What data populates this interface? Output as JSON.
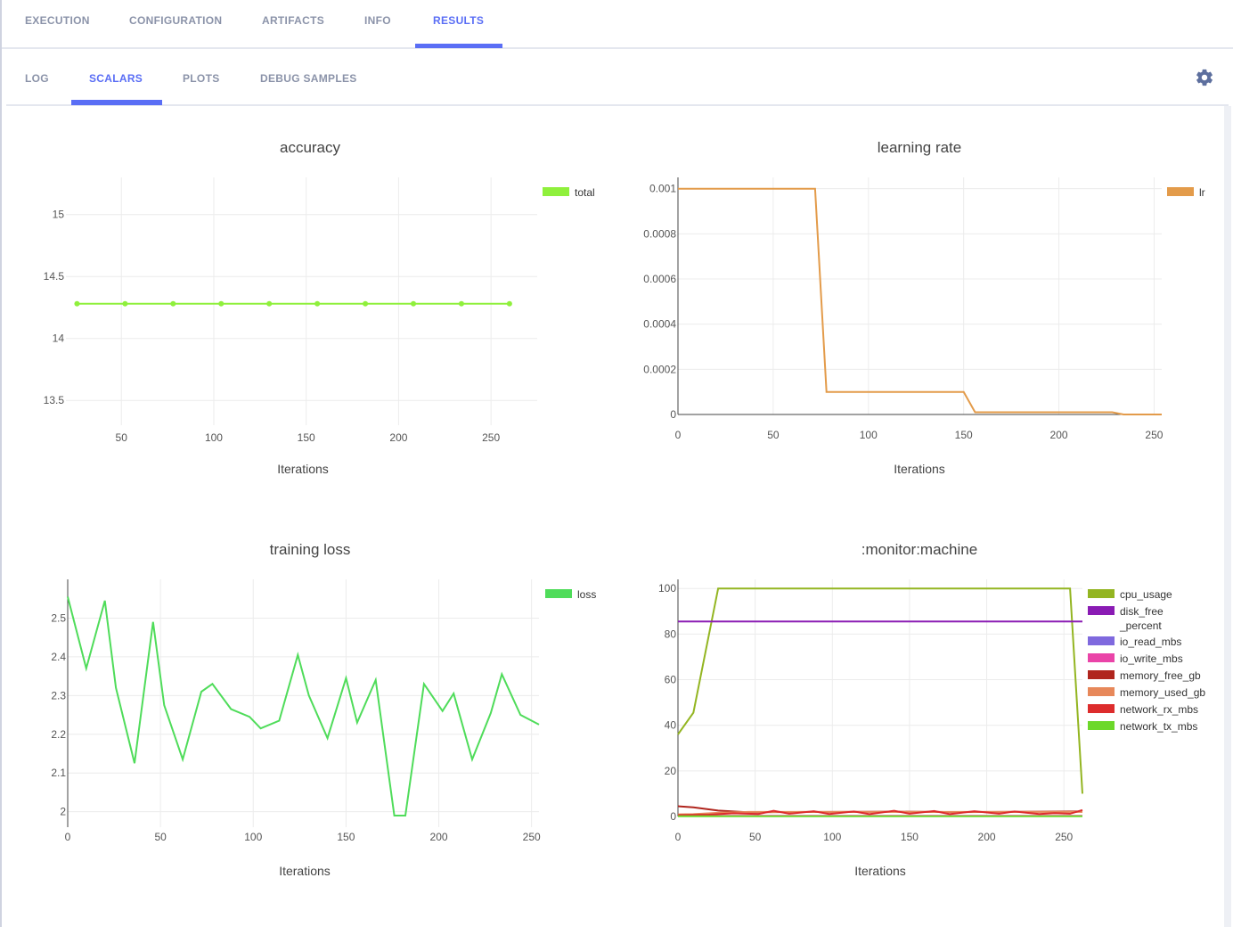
{
  "top_tabs": [
    {
      "label": "EXECUTION"
    },
    {
      "label": "CONFIGURATION"
    },
    {
      "label": "ARTIFACTS"
    },
    {
      "label": "INFO"
    },
    {
      "label": "RESULTS"
    }
  ],
  "active_top_tab": "RESULTS",
  "sub_tabs": [
    {
      "label": "LOG"
    },
    {
      "label": "SCALARS"
    },
    {
      "label": "PLOTS"
    },
    {
      "label": "DEBUG SAMPLES"
    }
  ],
  "active_sub_tab": "SCALARS",
  "settings_icon": "gear-icon",
  "colors": {
    "accent": "#5a6ef5",
    "tab_inactive": "#8b93a9"
  },
  "chart_data": [
    {
      "type": "line",
      "title": "accuracy",
      "xlabel": "Iterations",
      "ylabel": "",
      "xlim": [
        20,
        275
      ],
      "ylim": [
        13.3,
        15.3
      ],
      "xticks": [
        "50",
        "100",
        "150",
        "200",
        "250"
      ],
      "xtick_values": [
        50,
        100,
        150,
        200,
        250
      ],
      "yticks": [
        "13.5",
        "14",
        "14.5",
        "15"
      ],
      "ytick_values": [
        13.5,
        14,
        14.5,
        15
      ],
      "legend_position": "top-right",
      "series": [
        {
          "name": "total",
          "color": "#8ff03c",
          "markers": true,
          "x": [
            26,
            52,
            78,
            104,
            130,
            156,
            182,
            208,
            234,
            260
          ],
          "y": [
            14.28,
            14.28,
            14.28,
            14.28,
            14.28,
            14.28,
            14.28,
            14.28,
            14.28,
            14.28
          ]
        }
      ]
    },
    {
      "type": "line",
      "title": "learning rate",
      "xlabel": "Iterations",
      "ylabel": "",
      "xlim": [
        0,
        254
      ],
      "ylim": [
        0,
        0.00105
      ],
      "xticks": [
        "0",
        "50",
        "100",
        "150",
        "200",
        "250"
      ],
      "xtick_values": [
        0,
        50,
        100,
        150,
        200,
        250
      ],
      "yticks": [
        "0",
        "0.0002",
        "0.0004",
        "0.0006",
        "0.0008",
        "0.001"
      ],
      "ytick_values": [
        0,
        0.0002,
        0.0004,
        0.0006,
        0.0008,
        0.001
      ],
      "legend_position": "top-right",
      "series": [
        {
          "name": "lr",
          "color": "#e39b4a",
          "markers": false,
          "x": [
            0,
            72,
            78,
            150,
            156,
            228,
            234,
            254
          ],
          "y": [
            0.001,
            0.001,
            0.0001,
            0.0001,
            1e-05,
            1e-05,
            0.0,
            0.0
          ]
        }
      ]
    },
    {
      "type": "line",
      "title": "training loss",
      "xlabel": "Iterations",
      "ylabel": "",
      "xlim": [
        0,
        254
      ],
      "ylim": [
        1.96,
        2.6
      ],
      "xticks": [
        "0",
        "50",
        "100",
        "150",
        "200",
        "250"
      ],
      "xtick_values": [
        0,
        50,
        100,
        150,
        200,
        250
      ],
      "yticks": [
        "2",
        "2.1",
        "2.2",
        "2.3",
        "2.4",
        "2.5"
      ],
      "ytick_values": [
        2.0,
        2.1,
        2.2,
        2.3,
        2.4,
        2.5
      ],
      "legend_position": "top-right",
      "series": [
        {
          "name": "loss",
          "color": "#4fdc5a",
          "markers": false,
          "x": [
            0,
            10,
            20,
            26,
            36,
            46,
            52,
            62,
            72,
            78,
            88,
            98,
            104,
            114,
            124,
            130,
            140,
            150,
            156,
            166,
            176,
            182,
            192,
            202,
            208,
            218,
            228,
            234,
            244,
            254
          ],
          "y": [
            2.555,
            2.37,
            2.545,
            2.32,
            2.125,
            2.49,
            2.275,
            2.135,
            2.31,
            2.33,
            2.265,
            2.245,
            2.215,
            2.235,
            2.405,
            2.3,
            2.19,
            2.345,
            2.23,
            2.34,
            1.99,
            1.99,
            2.33,
            2.26,
            2.305,
            2.135,
            2.255,
            2.355,
            2.25,
            2.225
          ]
        }
      ]
    },
    {
      "type": "line",
      "title": ":monitor:machine",
      "xlabel": "Iterations",
      "ylabel": "",
      "xlim": [
        0,
        262
      ],
      "ylim": [
        0,
        104
      ],
      "xticks": [
        "0",
        "50",
        "100",
        "150",
        "200",
        "250"
      ],
      "xtick_values": [
        0,
        50,
        100,
        150,
        200,
        250
      ],
      "yticks": [
        "0",
        "20",
        "40",
        "60",
        "80",
        "100"
      ],
      "ytick_values": [
        0,
        20,
        40,
        60,
        80,
        100
      ],
      "legend_position": "top-right",
      "series": [
        {
          "name": "cpu_usage",
          "color": "#93b521",
          "markers": false,
          "x": [
            0,
            10,
            26,
            254,
            262
          ],
          "y": [
            36,
            45.5,
            100,
            100,
            10
          ]
        },
        {
          "name": "disk_free\n_percent",
          "color": "#8a1bb4",
          "markers": false,
          "x": [
            0,
            262
          ],
          "y": [
            85.5,
            85.5
          ]
        },
        {
          "name": "io_read_mbs",
          "color": "#7f69de",
          "markers": false,
          "x": [
            0,
            262
          ],
          "y": [
            0.2,
            0.2
          ]
        },
        {
          "name": "io_write_mbs",
          "color": "#ea44a8",
          "markers": false,
          "x": [
            0,
            262
          ],
          "y": [
            0.3,
            0.3
          ]
        },
        {
          "name": "memory_free_gb",
          "color": "#b0251d",
          "markers": false,
          "x": [
            0,
            10,
            26,
            46,
            62,
            104,
            140,
            182,
            234,
            254,
            262
          ],
          "y": [
            4.5,
            4,
            2.6,
            1.8,
            1.9,
            2.0,
            2.1,
            1.9,
            2.1,
            2.2,
            2.2
          ]
        },
        {
          "name": "memory_used_gb",
          "color": "#e7885a",
          "markers": false,
          "x": [
            0,
            10,
            26,
            46,
            62,
            104,
            140,
            182,
            234,
            254,
            262
          ],
          "y": [
            0.9,
            1.0,
            1.6,
            2.0,
            2.0,
            2.0,
            2.0,
            2.0,
            2.0,
            2.0,
            2.0
          ]
        },
        {
          "name": "network_rx_mbs",
          "color": "#dd2c2c",
          "markers": false,
          "x": [
            0,
            20,
            36,
            52,
            62,
            72,
            88,
            98,
            114,
            124,
            140,
            150,
            166,
            176,
            192,
            208,
            218,
            234,
            244,
            254,
            262
          ],
          "y": [
            0.6,
            0.8,
            1.4,
            1.1,
            2.5,
            1.2,
            2.3,
            1.1,
            2.2,
            1.0,
            2.5,
            1.2,
            2.4,
            1.0,
            2.3,
            1.2,
            2.2,
            1.1,
            1.5,
            1.2,
            2.8
          ]
        },
        {
          "name": "network_tx_mbs",
          "color": "#6cd82a",
          "markers": false,
          "x": [
            0,
            262
          ],
          "y": [
            0.1,
            0.1
          ]
        }
      ]
    }
  ]
}
